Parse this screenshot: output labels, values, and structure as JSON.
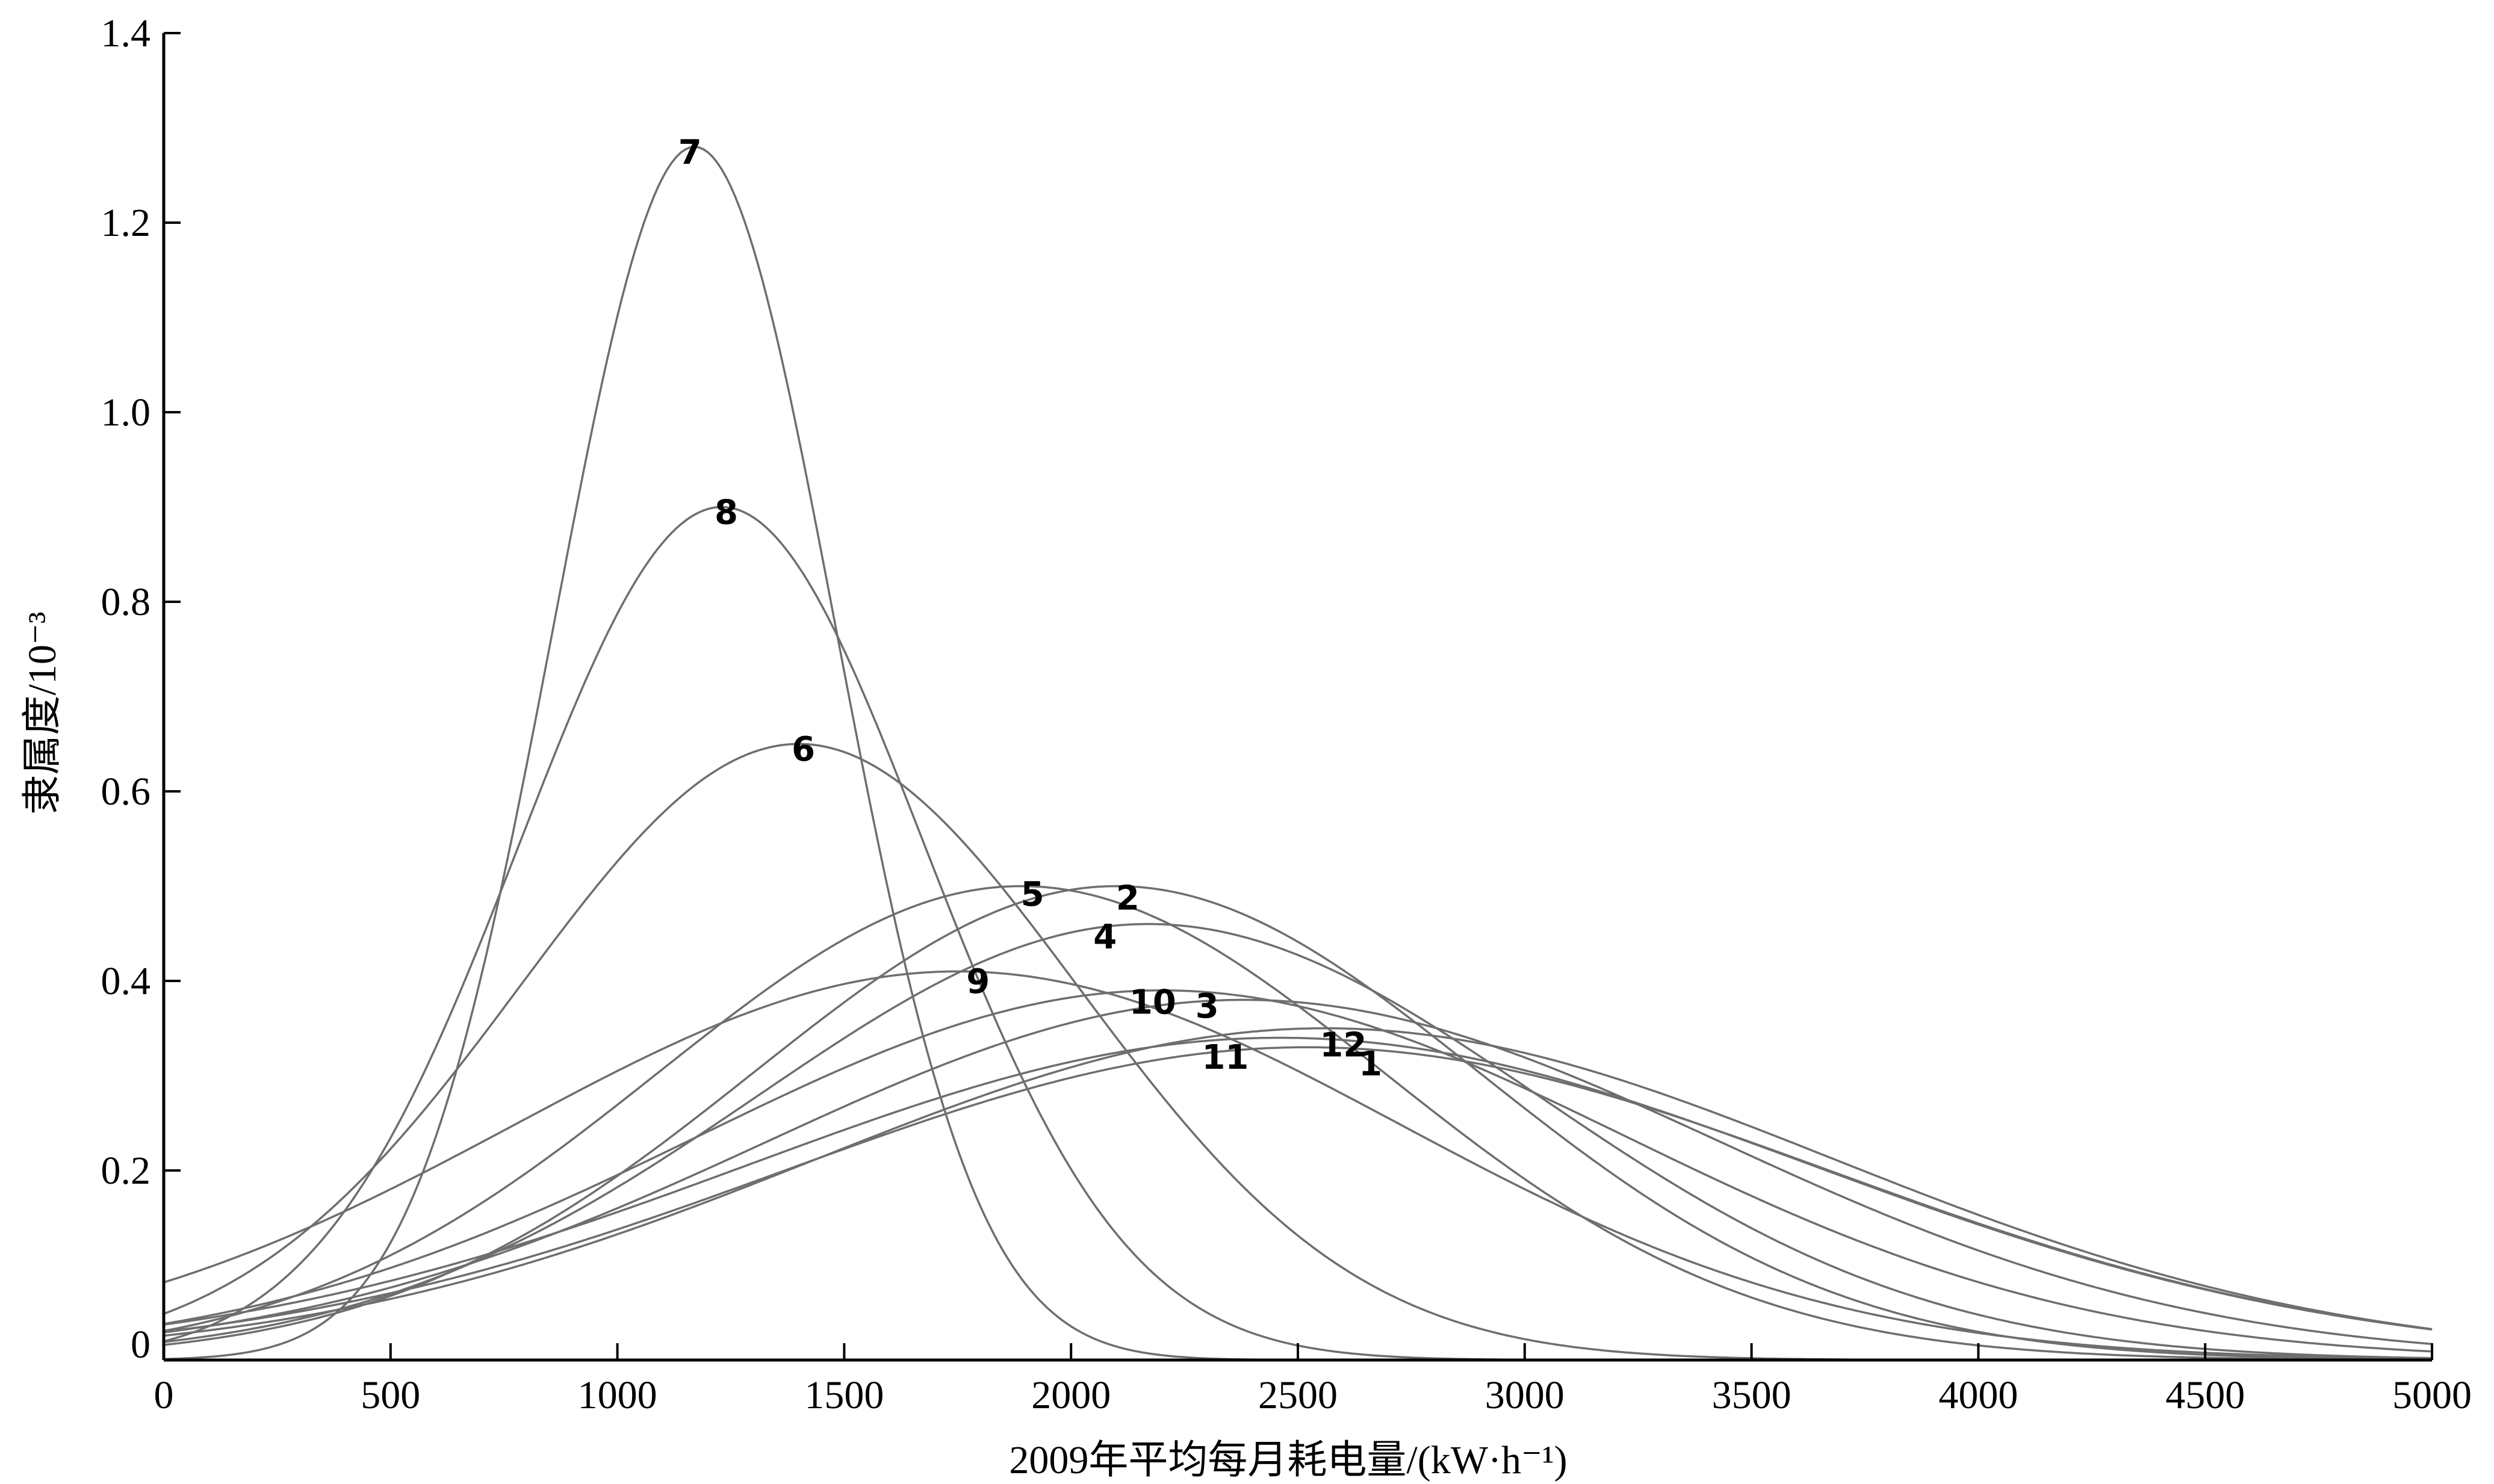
{
  "chart_data": {
    "type": "line",
    "xlabel": "2009年平均每月耗电量/(kW·h⁻¹)",
    "ylabel": "隶属度/10⁻³",
    "xlim": [
      0,
      5000
    ],
    "ylim": [
      0,
      1.4
    ],
    "xticks": [
      "0",
      "500",
      "1000",
      "1500",
      "2000",
      "2500",
      "3000",
      "3500",
      "4000",
      "4500",
      "5000"
    ],
    "yticks": [
      "0",
      "0.2",
      "0.4",
      "0.6",
      "0.8",
      "1.0",
      "1.2",
      "1.4"
    ],
    "grid": false,
    "series": [
      {
        "name": "1",
        "peak_x": 2520,
        "peak_y": 0.33,
        "spread": 1150
      },
      {
        "name": "2",
        "peak_x": 2100,
        "peak_y": 0.5,
        "spread": 800
      },
      {
        "name": "3",
        "peak_x": 2380,
        "peak_y": 0.38,
        "spread": 1050
      },
      {
        "name": "4",
        "peak_x": 2170,
        "peak_y": 0.46,
        "spread": 860
      },
      {
        "name": "5",
        "peak_x": 1890,
        "peak_y": 0.5,
        "spread": 800
      },
      {
        "name": "6",
        "peak_x": 1400,
        "peak_y": 0.65,
        "spread": 615
      },
      {
        "name": "7",
        "peak_x": 1170,
        "peak_y": 1.28,
        "spread": 310
      },
      {
        "name": "8",
        "peak_x": 1230,
        "peak_y": 0.9,
        "spread": 445
      },
      {
        "name": "9",
        "peak_x": 1750,
        "peak_y": 0.41,
        "spread": 975
      },
      {
        "name": "10",
        "peak_x": 2200,
        "peak_y": 0.39,
        "spread": 1020
      },
      {
        "name": "11",
        "peak_x": 2460,
        "peak_y": 0.34,
        "spread": 1170
      },
      {
        "name": "12",
        "peak_x": 2560,
        "peak_y": 0.35,
        "spread": 1120
      }
    ],
    "point_labels": [
      {
        "text": "7",
        "x": 1160,
        "y": 1.275
      },
      {
        "text": "8",
        "x": 1240,
        "y": 0.895
      },
      {
        "text": "6",
        "x": 1410,
        "y": 0.645
      },
      {
        "text": "5",
        "x": 1915,
        "y": 0.492
      },
      {
        "text": "2",
        "x": 2125,
        "y": 0.488
      },
      {
        "text": "4",
        "x": 2075,
        "y": 0.447
      },
      {
        "text": "9",
        "x": 1795,
        "y": 0.4
      },
      {
        "text": "10",
        "x": 2180,
        "y": 0.378
      },
      {
        "text": "3",
        "x": 2300,
        "y": 0.374
      },
      {
        "text": "12",
        "x": 2600,
        "y": 0.333
      },
      {
        "text": "11",
        "x": 2340,
        "y": 0.32
      },
      {
        "text": "1",
        "x": 2660,
        "y": 0.313
      }
    ]
  }
}
